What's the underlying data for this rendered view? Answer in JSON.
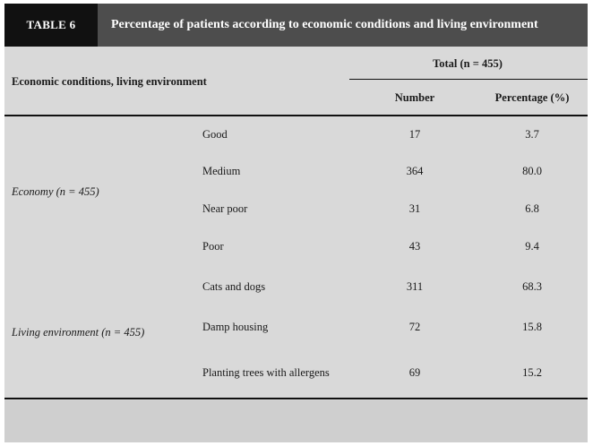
{
  "title": {
    "label": "TABLE 6",
    "text": "Percentage of patients according to economic conditions and living environment"
  },
  "header": {
    "row_label": "Economic conditions, living environment",
    "group": "Total (n = 455)",
    "col_number": "Number",
    "col_percentage": "Percentage (%)"
  },
  "groups": [
    {
      "label_main": "Economy",
      "label_n": "(n = 455)",
      "rows": [
        {
          "item": "Good",
          "number": "17",
          "percentage": "3.7"
        },
        {
          "item": "Medium",
          "number": "364",
          "percentage": "80.0"
        },
        {
          "item": "Near poor",
          "number": "31",
          "percentage": "6.8"
        },
        {
          "item": "Poor",
          "number": "43",
          "percentage": "9.4"
        }
      ]
    },
    {
      "label_main": "Living environment",
      "label_n": "(n = 455)",
      "rows": [
        {
          "item": "Cats and dogs",
          "number": "311",
          "percentage": "68.3"
        },
        {
          "item": "Damp housing",
          "number": "72",
          "percentage": "15.8"
        },
        {
          "item": "Planting trees with allergens",
          "number": "69",
          "percentage": "15.2"
        }
      ]
    }
  ]
}
